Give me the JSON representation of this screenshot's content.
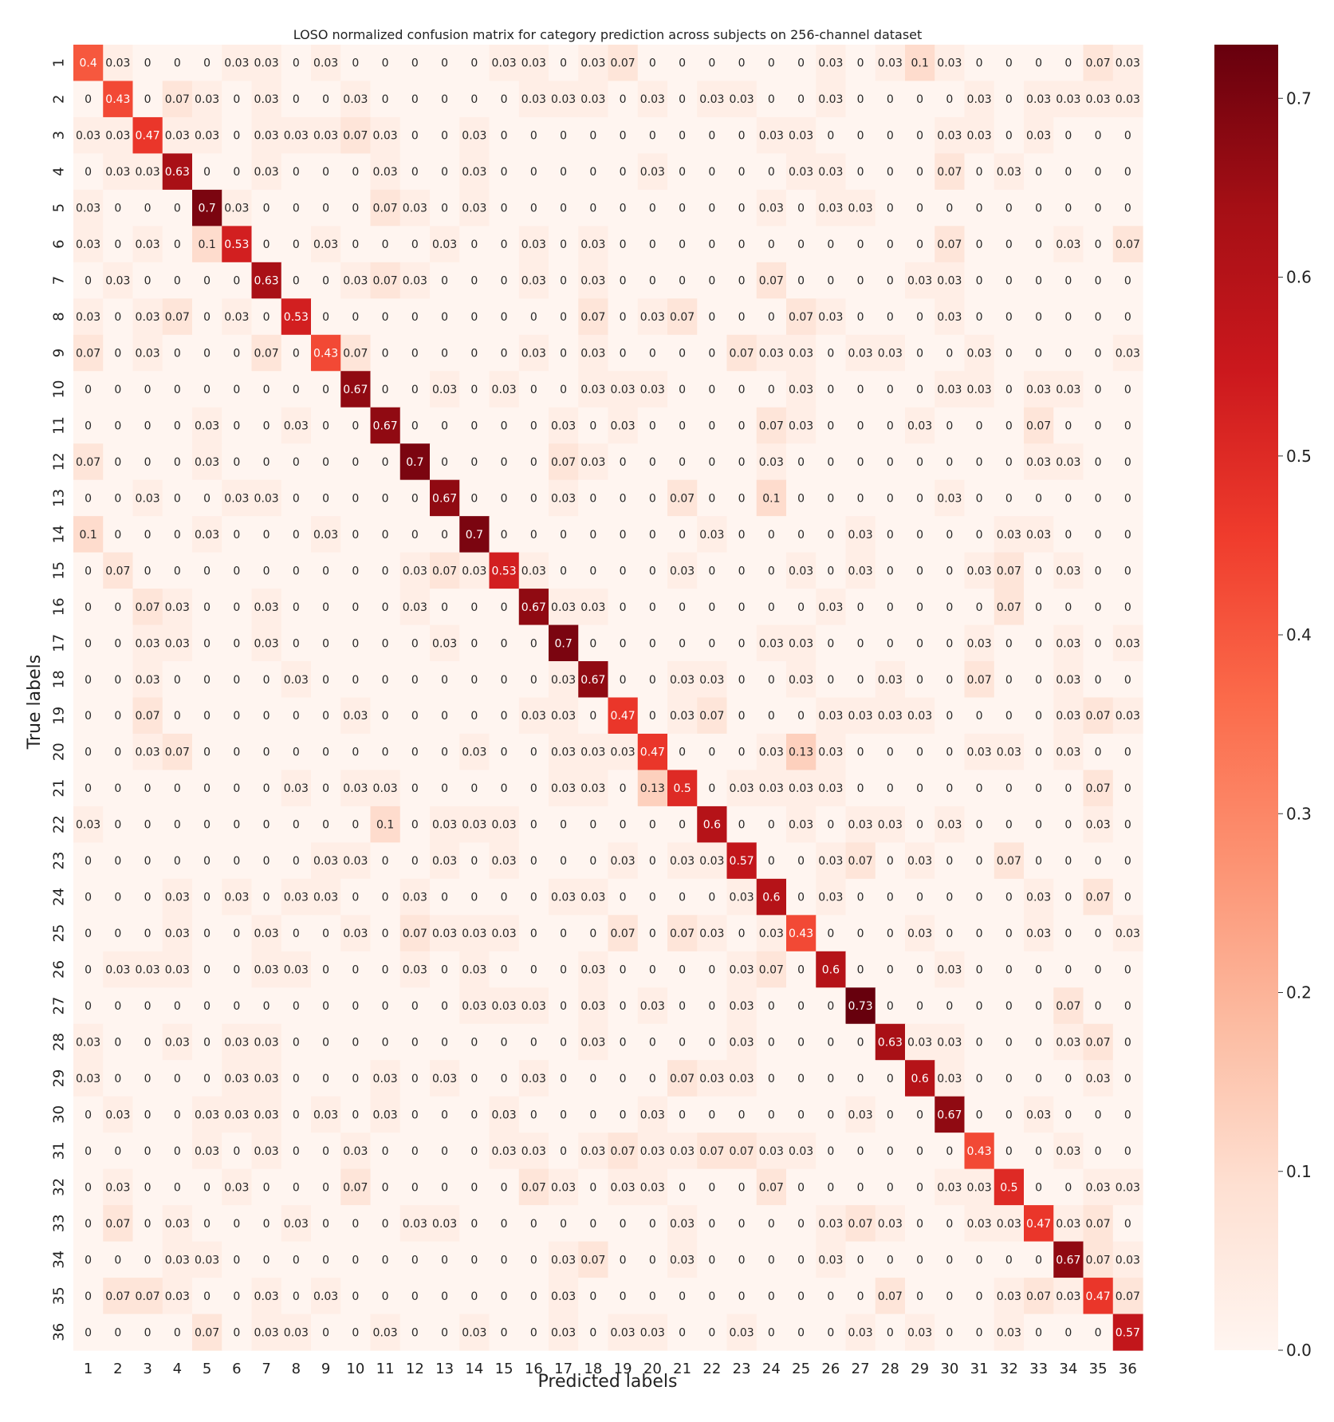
{
  "chart_data": {
    "type": "heatmap",
    "title": "LOSO normalized confusion matrix for category prediction across subjects on 256-channel dataset",
    "xlabel": "Predicted labels",
    "ylabel": "True labels",
    "x_categories": [
      "1",
      "2",
      "3",
      "4",
      "5",
      "6",
      "7",
      "8",
      "9",
      "10",
      "11",
      "12",
      "13",
      "14",
      "15",
      "16",
      "17",
      "18",
      "19",
      "20",
      "21",
      "22",
      "23",
      "24",
      "25",
      "26",
      "27",
      "28",
      "29",
      "30",
      "31",
      "32",
      "33",
      "34",
      "35",
      "36"
    ],
    "y_categories": [
      "1",
      "2",
      "3",
      "4",
      "5",
      "6",
      "7",
      "8",
      "9",
      "10",
      "11",
      "12",
      "13",
      "14",
      "15",
      "16",
      "17",
      "18",
      "19",
      "20",
      "21",
      "22",
      "23",
      "24",
      "25",
      "26",
      "27",
      "28",
      "29",
      "30",
      "31",
      "32",
      "33",
      "34",
      "35",
      "36"
    ],
    "values": [
      [
        0.4,
        0.03,
        0,
        0,
        0,
        0.03,
        0.03,
        0,
        0.03,
        0,
        0,
        0,
        0,
        0,
        0.03,
        0.03,
        0,
        0.03,
        0.07,
        0,
        0,
        0,
        0,
        0,
        0,
        0.03,
        0,
        0.03,
        0.1,
        0.03,
        0,
        0,
        0,
        0,
        0.07,
        0.03
      ],
      [
        0,
        0.43,
        0,
        0.07,
        0.03,
        0,
        0.03,
        0,
        0,
        0.03,
        0,
        0,
        0,
        0,
        0,
        0.03,
        0.03,
        0.03,
        0,
        0.03,
        0,
        0.03,
        0.03,
        0,
        0,
        0.03,
        0,
        0,
        0,
        0,
        0.03,
        0,
        0.03,
        0.03,
        0.03,
        0.03
      ],
      [
        0.03,
        0.03,
        0.47,
        0.03,
        0.03,
        0,
        0.03,
        0.03,
        0.03,
        0.07,
        0.03,
        0,
        0,
        0.03,
        0,
        0,
        0,
        0,
        0,
        0,
        0,
        0,
        0,
        0.03,
        0.03,
        0,
        0,
        0,
        0,
        0.03,
        0.03,
        0,
        0.03,
        0,
        0,
        0
      ],
      [
        0,
        0.03,
        0.03,
        0.63,
        0,
        0,
        0.03,
        0,
        0,
        0,
        0.03,
        0,
        0,
        0.03,
        0,
        0,
        0,
        0,
        0,
        0.03,
        0,
        0,
        0,
        0,
        0.03,
        0.03,
        0,
        0,
        0,
        0.07,
        0,
        0.03,
        0,
        0,
        0,
        0
      ],
      [
        0.03,
        0,
        0,
        0,
        0.7,
        0.03,
        0,
        0,
        0,
        0,
        0.07,
        0.03,
        0,
        0.03,
        0,
        0,
        0,
        0,
        0,
        0,
        0,
        0,
        0,
        0.03,
        0,
        0.03,
        0.03,
        0,
        0,
        0,
        0,
        0,
        0,
        0,
        0,
        0
      ],
      [
        0.03,
        0,
        0.03,
        0,
        0.1,
        0.53,
        0,
        0,
        0.03,
        0,
        0,
        0,
        0.03,
        0,
        0,
        0.03,
        0,
        0.03,
        0,
        0,
        0,
        0,
        0,
        0,
        0,
        0,
        0,
        0,
        0,
        0.07,
        0,
        0,
        0,
        0.03,
        0,
        0.07
      ],
      [
        0,
        0.03,
        0,
        0,
        0,
        0,
        0.63,
        0,
        0,
        0.03,
        0.07,
        0.03,
        0,
        0,
        0,
        0.03,
        0,
        0.03,
        0,
        0,
        0,
        0,
        0,
        0.07,
        0,
        0,
        0,
        0,
        0.03,
        0.03,
        0,
        0,
        0,
        0,
        0,
        0
      ],
      [
        0.03,
        0,
        0.03,
        0.07,
        0,
        0.03,
        0,
        0.53,
        0,
        0,
        0,
        0,
        0,
        0,
        0,
        0,
        0,
        0.07,
        0,
        0.03,
        0.07,
        0,
        0,
        0,
        0.07,
        0.03,
        0,
        0,
        0,
        0.03,
        0,
        0,
        0,
        0,
        0,
        0
      ],
      [
        0.07,
        0,
        0.03,
        0,
        0,
        0,
        0.07,
        0,
        0.43,
        0.07,
        0,
        0,
        0,
        0,
        0,
        0.03,
        0,
        0.03,
        0,
        0,
        0,
        0,
        0.07,
        0.03,
        0.03,
        0,
        0.03,
        0.03,
        0,
        0,
        0.03,
        0,
        0,
        0,
        0,
        0.03
      ],
      [
        0,
        0,
        0,
        0,
        0,
        0,
        0,
        0,
        0,
        0.67,
        0,
        0,
        0.03,
        0,
        0.03,
        0,
        0,
        0.03,
        0.03,
        0.03,
        0,
        0,
        0,
        0,
        0.03,
        0,
        0,
        0,
        0,
        0.03,
        0.03,
        0,
        0.03,
        0.03,
        0,
        0
      ],
      [
        0,
        0,
        0,
        0,
        0.03,
        0,
        0,
        0.03,
        0,
        0,
        0.67,
        0,
        0,
        0,
        0,
        0,
        0.03,
        0,
        0.03,
        0,
        0,
        0,
        0,
        0.07,
        0.03,
        0,
        0,
        0,
        0.03,
        0,
        0,
        0,
        0.07,
        0,
        0,
        0
      ],
      [
        0.07,
        0,
        0,
        0,
        0.03,
        0,
        0,
        0,
        0,
        0,
        0,
        0.7,
        0,
        0,
        0,
        0,
        0.07,
        0.03,
        0,
        0,
        0,
        0,
        0,
        0.03,
        0,
        0,
        0,
        0,
        0,
        0,
        0,
        0,
        0.03,
        0.03,
        0,
        0
      ],
      [
        0,
        0,
        0.03,
        0,
        0,
        0.03,
        0.03,
        0,
        0,
        0,
        0,
        0,
        0.67,
        0,
        0,
        0,
        0.03,
        0,
        0,
        0,
        0.07,
        0,
        0,
        0.1,
        0,
        0,
        0,
        0,
        0,
        0.03,
        0,
        0,
        0,
        0,
        0,
        0
      ],
      [
        0.1,
        0,
        0,
        0,
        0.03,
        0,
        0,
        0,
        0.03,
        0,
        0,
        0,
        0,
        0.7,
        0,
        0,
        0,
        0,
        0,
        0,
        0,
        0.03,
        0,
        0,
        0,
        0,
        0.03,
        0,
        0,
        0,
        0,
        0.03,
        0.03,
        0,
        0,
        0
      ],
      [
        0,
        0.07,
        0,
        0,
        0,
        0,
        0,
        0,
        0,
        0,
        0,
        0.03,
        0.07,
        0.03,
        0.53,
        0.03,
        0,
        0,
        0,
        0,
        0.03,
        0,
        0,
        0,
        0.03,
        0,
        0.03,
        0,
        0,
        0,
        0.03,
        0.07,
        0,
        0.03,
        0,
        0
      ],
      [
        0,
        0,
        0.07,
        0.03,
        0,
        0,
        0.03,
        0,
        0,
        0,
        0,
        0.03,
        0,
        0,
        0,
        0.67,
        0.03,
        0.03,
        0,
        0,
        0,
        0,
        0,
        0,
        0,
        0.03,
        0,
        0,
        0,
        0,
        0,
        0.07,
        0,
        0,
        0,
        0
      ],
      [
        0,
        0,
        0.03,
        0.03,
        0,
        0,
        0.03,
        0,
        0,
        0,
        0,
        0,
        0.03,
        0,
        0,
        0,
        0.7,
        0,
        0,
        0,
        0,
        0,
        0,
        0.03,
        0.03,
        0,
        0,
        0,
        0,
        0,
        0.03,
        0,
        0,
        0.03,
        0,
        0.03
      ],
      [
        0,
        0,
        0.03,
        0,
        0,
        0,
        0,
        0.03,
        0,
        0,
        0,
        0,
        0,
        0,
        0,
        0,
        0.03,
        0.67,
        0,
        0,
        0.03,
        0.03,
        0,
        0,
        0.03,
        0,
        0,
        0.03,
        0,
        0,
        0.07,
        0,
        0,
        0.03,
        0,
        0
      ],
      [
        0,
        0,
        0.07,
        0,
        0,
        0,
        0,
        0,
        0,
        0.03,
        0,
        0,
        0,
        0,
        0,
        0.03,
        0.03,
        0,
        0.47,
        0,
        0.03,
        0.07,
        0,
        0,
        0,
        0.03,
        0.03,
        0.03,
        0.03,
        0,
        0,
        0,
        0,
        0.03,
        0.07,
        0.03
      ],
      [
        0,
        0,
        0.03,
        0.07,
        0,
        0,
        0,
        0,
        0,
        0,
        0,
        0,
        0,
        0.03,
        0,
        0,
        0.03,
        0.03,
        0.03,
        0.47,
        0,
        0,
        0,
        0.03,
        0.13,
        0.03,
        0,
        0,
        0,
        0,
        0.03,
        0.03,
        0,
        0.03,
        0,
        0
      ],
      [
        0,
        0,
        0,
        0,
        0,
        0,
        0,
        0.03,
        0,
        0.03,
        0.03,
        0,
        0,
        0,
        0,
        0,
        0.03,
        0.03,
        0,
        0.13,
        0.5,
        0,
        0.03,
        0.03,
        0.03,
        0.03,
        0,
        0,
        0,
        0,
        0,
        0,
        0,
        0,
        0.07,
        0
      ],
      [
        0.03,
        0,
        0,
        0,
        0,
        0,
        0,
        0,
        0,
        0,
        0.1,
        0,
        0.03,
        0.03,
        0.03,
        0,
        0,
        0,
        0,
        0,
        0,
        0.6,
        0,
        0,
        0.03,
        0,
        0.03,
        0.03,
        0,
        0.03,
        0,
        0,
        0,
        0,
        0.03,
        0
      ],
      [
        0,
        0,
        0,
        0,
        0,
        0,
        0,
        0,
        0.03,
        0.03,
        0,
        0,
        0.03,
        0,
        0.03,
        0,
        0,
        0,
        0.03,
        0,
        0.03,
        0.03,
        0.57,
        0,
        0,
        0.03,
        0.07,
        0,
        0.03,
        0,
        0,
        0.07,
        0,
        0,
        0,
        0
      ],
      [
        0,
        0,
        0,
        0.03,
        0,
        0.03,
        0,
        0.03,
        0.03,
        0,
        0,
        0.03,
        0,
        0,
        0,
        0,
        0.03,
        0.03,
        0,
        0,
        0,
        0,
        0.03,
        0.6,
        0,
        0.03,
        0,
        0,
        0,
        0,
        0,
        0,
        0.03,
        0,
        0.07,
        0
      ],
      [
        0,
        0,
        0,
        0.03,
        0,
        0,
        0.03,
        0,
        0,
        0.03,
        0,
        0.07,
        0.03,
        0.03,
        0.03,
        0,
        0,
        0,
        0.07,
        0,
        0.07,
        0.03,
        0,
        0.03,
        0.43,
        0,
        0,
        0,
        0.03,
        0,
        0,
        0,
        0.03,
        0,
        0,
        0.03
      ],
      [
        0,
        0.03,
        0.03,
        0.03,
        0,
        0,
        0.03,
        0.03,
        0,
        0,
        0,
        0.03,
        0,
        0.03,
        0,
        0,
        0,
        0.03,
        0,
        0,
        0,
        0,
        0.03,
        0.07,
        0,
        0.6,
        0,
        0,
        0,
        0.03,
        0,
        0,
        0,
        0,
        0,
        0
      ],
      [
        0,
        0,
        0,
        0,
        0,
        0,
        0,
        0,
        0,
        0,
        0,
        0,
        0,
        0.03,
        0.03,
        0.03,
        0,
        0.03,
        0,
        0.03,
        0,
        0,
        0.03,
        0,
        0,
        0,
        0.73,
        0,
        0,
        0,
        0,
        0,
        0,
        0.07,
        0,
        0
      ],
      [
        0.03,
        0,
        0,
        0.03,
        0,
        0.03,
        0.03,
        0,
        0,
        0,
        0,
        0,
        0,
        0,
        0,
        0,
        0,
        0.03,
        0,
        0,
        0,
        0,
        0.03,
        0,
        0,
        0,
        0,
        0.63,
        0.03,
        0.03,
        0,
        0,
        0,
        0.03,
        0.07,
        0
      ],
      [
        0.03,
        0,
        0,
        0,
        0,
        0.03,
        0.03,
        0,
        0,
        0,
        0.03,
        0,
        0.03,
        0,
        0,
        0.03,
        0,
        0,
        0,
        0,
        0.07,
        0.03,
        0.03,
        0,
        0,
        0,
        0,
        0,
        0.6,
        0.03,
        0,
        0,
        0,
        0,
        0.03,
        0
      ],
      [
        0,
        0.03,
        0,
        0,
        0.03,
        0.03,
        0.03,
        0,
        0.03,
        0,
        0.03,
        0,
        0,
        0,
        0.03,
        0,
        0,
        0,
        0,
        0.03,
        0,
        0,
        0,
        0,
        0,
        0,
        0.03,
        0,
        0,
        0.67,
        0,
        0,
        0.03,
        0,
        0,
        0
      ],
      [
        0,
        0,
        0,
        0,
        0.03,
        0,
        0.03,
        0,
        0,
        0.03,
        0,
        0,
        0,
        0,
        0.03,
        0.03,
        0,
        0.03,
        0.07,
        0.03,
        0.03,
        0.07,
        0.07,
        0.03,
        0.03,
        0,
        0,
        0,
        0,
        0,
        0.43,
        0,
        0,
        0.03,
        0,
        0
      ],
      [
        0,
        0.03,
        0,
        0,
        0,
        0.03,
        0,
        0,
        0,
        0.07,
        0,
        0,
        0,
        0,
        0,
        0.07,
        0.03,
        0,
        0.03,
        0.03,
        0,
        0,
        0,
        0.07,
        0,
        0,
        0,
        0,
        0,
        0.03,
        0.03,
        0.5,
        0,
        0,
        0.03,
        0.03
      ],
      [
        0,
        0.07,
        0,
        0.03,
        0,
        0,
        0,
        0.03,
        0,
        0,
        0,
        0.03,
        0.03,
        0,
        0,
        0,
        0,
        0,
        0,
        0,
        0.03,
        0,
        0,
        0,
        0,
        0.03,
        0.07,
        0.03,
        0,
        0,
        0.03,
        0.03,
        0.47,
        0.03,
        0.07,
        0
      ],
      [
        0,
        0,
        0,
        0.03,
        0.03,
        0,
        0,
        0,
        0,
        0,
        0,
        0,
        0,
        0,
        0,
        0,
        0.03,
        0.07,
        0,
        0,
        0.03,
        0,
        0,
        0,
        0,
        0.03,
        0,
        0,
        0,
        0,
        0,
        0,
        0,
        0.67,
        0.07,
        0.03
      ],
      [
        0,
        0.07,
        0.07,
        0.03,
        0,
        0,
        0.03,
        0,
        0.03,
        0,
        0,
        0,
        0,
        0,
        0,
        0,
        0.03,
        0,
        0,
        0,
        0,
        0,
        0,
        0,
        0,
        0,
        0,
        0.07,
        0,
        0,
        0,
        0.03,
        0.07,
        0.03,
        0.47,
        0.07
      ],
      [
        0,
        0,
        0,
        0,
        0.07,
        0,
        0.03,
        0.03,
        0,
        0,
        0.03,
        0,
        0,
        0.03,
        0,
        0,
        0.03,
        0,
        0.03,
        0.03,
        0,
        0,
        0.03,
        0,
        0,
        0,
        0.03,
        0,
        0.03,
        0,
        0,
        0.03,
        0,
        0,
        0,
        0.57
      ]
    ],
    "colormap": "Reds",
    "colorbar": {
      "range": [
        0.0,
        0.73
      ],
      "ticks": [
        "0.0",
        "0.1",
        "0.2",
        "0.3",
        "0.4",
        "0.5",
        "0.6",
        "0.7"
      ]
    }
  }
}
